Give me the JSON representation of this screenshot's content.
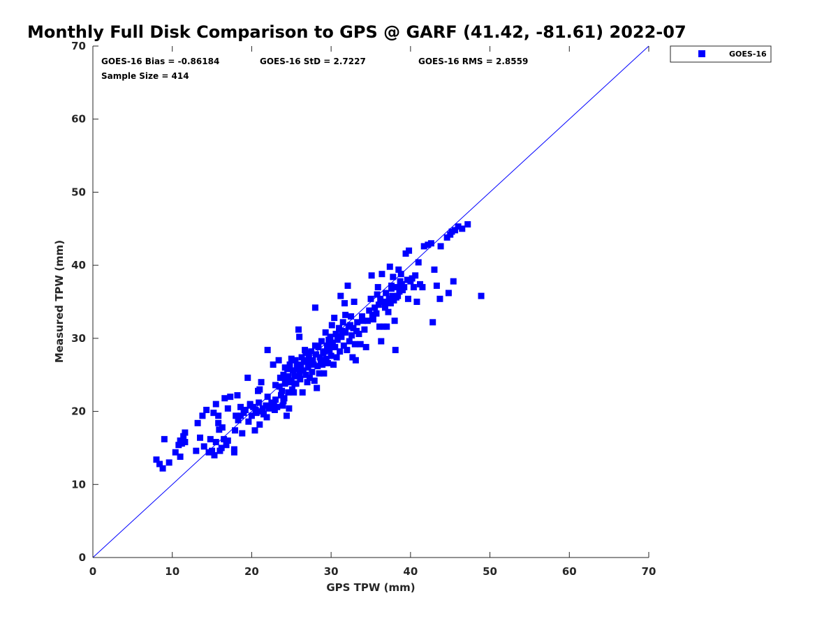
{
  "chart_data": {
    "type": "scatter",
    "title": "Monthly Full Disk Comparison to GPS @ GARF (41.42, -81.61) 2022-07",
    "xlabel": "GPS TPW (mm)",
    "ylabel": "Measured TPW (mm)",
    "xlim": [
      0,
      70
    ],
    "ylim": [
      0,
      70
    ],
    "xticks": [
      "0",
      "10",
      "20",
      "30",
      "40",
      "50",
      "60",
      "70"
    ],
    "yticks": [
      "0",
      "10",
      "20",
      "30",
      "40",
      "50",
      "60",
      "70"
    ],
    "grid": false,
    "legend_position": "outside-top-right",
    "reference_line": {
      "type": "1:1",
      "color": "#0000ff"
    },
    "stats": {
      "bias": "GOES-16 Bias = -0.86184",
      "std": "GOES-16 StD = 2.7227",
      "rms": "GOES-16 RMS = 2.8559",
      "sample_size": "Sample Size = 414"
    },
    "series": [
      {
        "name": "GOES-16",
        "color": "#0000ff",
        "marker": "square",
        "points": [
          [
            8.0,
            13.4
          ],
          [
            8.4,
            12.8
          ],
          [
            8.8,
            12.2
          ],
          [
            9.0,
            16.2
          ],
          [
            9.6,
            13.0
          ],
          [
            10.4,
            14.4
          ],
          [
            10.8,
            15.4
          ],
          [
            11.0,
            13.8
          ],
          [
            11.0,
            16.0
          ],
          [
            11.2,
            15.6
          ],
          [
            11.4,
            16.6
          ],
          [
            11.6,
            15.8
          ],
          [
            11.6,
            17.1
          ],
          [
            13.0,
            14.6
          ],
          [
            13.2,
            18.4
          ],
          [
            13.5,
            16.4
          ],
          [
            13.8,
            19.4
          ],
          [
            14.0,
            15.2
          ],
          [
            14.3,
            20.2
          ],
          [
            14.6,
            14.4
          ],
          [
            14.8,
            16.2
          ],
          [
            15.0,
            14.6
          ],
          [
            15.2,
            19.8
          ],
          [
            15.3,
            14.0
          ],
          [
            15.5,
            21.0
          ],
          [
            15.5,
            15.8
          ],
          [
            15.8,
            18.4
          ],
          [
            15.8,
            19.4
          ],
          [
            15.9,
            17.5
          ],
          [
            16.0,
            14.6
          ],
          [
            16.2,
            15.0
          ],
          [
            16.3,
            17.8
          ],
          [
            16.5,
            16.2
          ],
          [
            16.6,
            21.8
          ],
          [
            16.8,
            15.4
          ],
          [
            17.0,
            16.0
          ],
          [
            17.0,
            20.4
          ],
          [
            17.3,
            22.0
          ],
          [
            17.8,
            14.4
          ],
          [
            17.8,
            14.8
          ],
          [
            17.9,
            17.4
          ],
          [
            18.0,
            19.4
          ],
          [
            18.2,
            22.2
          ],
          [
            18.3,
            18.8
          ],
          [
            18.6,
            19.4
          ],
          [
            18.6,
            20.6
          ],
          [
            18.8,
            17.0
          ],
          [
            19.0,
            19.8
          ],
          [
            19.2,
            20.2
          ],
          [
            19.5,
            24.6
          ],
          [
            19.6,
            18.6
          ],
          [
            19.8,
            21.0
          ],
          [
            20.0,
            19.4
          ],
          [
            20.2,
            20.6
          ],
          [
            20.4,
            17.4
          ],
          [
            20.6,
            19.8
          ],
          [
            20.8,
            22.8
          ],
          [
            20.9,
            21.2
          ],
          [
            21.0,
            18.2
          ],
          [
            21.2,
            20.0
          ],
          [
            21.2,
            24.0
          ],
          [
            21.4,
            20.4
          ],
          [
            21.5,
            19.6
          ],
          [
            21.8,
            20.8
          ],
          [
            21.9,
            19.2
          ],
          [
            22.0,
            28.4
          ],
          [
            22.2,
            20.4
          ],
          [
            22.5,
            20.6
          ],
          [
            22.7,
            26.4
          ],
          [
            22.8,
            21.0
          ],
          [
            22.9,
            20.2
          ],
          [
            23.0,
            21.6
          ],
          [
            23.2,
            20.6
          ],
          [
            23.4,
            27.0
          ],
          [
            23.5,
            23.4
          ],
          [
            23.6,
            24.6
          ],
          [
            23.7,
            22.2
          ],
          [
            23.9,
            20.8
          ],
          [
            24.0,
            25.0
          ],
          [
            24.1,
            21.8
          ],
          [
            24.2,
            23.8
          ],
          [
            24.3,
            24.2
          ],
          [
            24.4,
            19.4
          ],
          [
            24.5,
            25.8
          ],
          [
            24.6,
            22.6
          ],
          [
            24.7,
            20.4
          ],
          [
            24.8,
            26.4
          ],
          [
            24.9,
            24.0
          ],
          [
            25.0,
            27.2
          ],
          [
            25.1,
            23.0
          ],
          [
            25.2,
            25.6
          ],
          [
            25.3,
            22.6
          ],
          [
            25.4,
            24.8
          ],
          [
            25.5,
            27.0
          ],
          [
            25.6,
            23.8
          ],
          [
            25.8,
            25.8
          ],
          [
            25.9,
            31.2
          ],
          [
            26.0,
            30.2
          ],
          [
            26.1,
            24.4
          ],
          [
            26.2,
            26.4
          ],
          [
            26.4,
            22.6
          ],
          [
            26.5,
            25.6
          ],
          [
            26.6,
            27.0
          ],
          [
            26.7,
            28.4
          ],
          [
            26.8,
            25.0
          ],
          [
            26.9,
            26.8
          ],
          [
            27.0,
            24.0
          ],
          [
            27.2,
            27.6
          ],
          [
            27.3,
            24.6
          ],
          [
            27.5,
            28.2
          ],
          [
            27.6,
            25.4
          ],
          [
            27.8,
            26.4
          ],
          [
            27.9,
            24.2
          ],
          [
            28.0,
            34.2
          ],
          [
            28.1,
            27.8
          ],
          [
            28.2,
            23.2
          ],
          [
            28.3,
            26.2
          ],
          [
            28.4,
            28.8
          ],
          [
            28.5,
            25.2
          ],
          [
            28.6,
            27.4
          ],
          [
            28.8,
            29.6
          ],
          [
            28.9,
            26.4
          ],
          [
            29.0,
            28.0
          ],
          [
            29.1,
            25.2
          ],
          [
            29.3,
            30.8
          ],
          [
            29.4,
            27.2
          ],
          [
            29.5,
            29.0
          ],
          [
            29.6,
            26.6
          ],
          [
            29.8,
            28.4
          ],
          [
            29.9,
            30.2
          ],
          [
            30.0,
            27.6
          ],
          [
            30.1,
            31.8
          ],
          [
            30.2,
            29.4
          ],
          [
            30.3,
            26.4
          ],
          [
            30.4,
            32.8
          ],
          [
            30.5,
            28.8
          ],
          [
            30.6,
            30.6
          ],
          [
            30.7,
            27.4
          ],
          [
            30.8,
            29.8
          ],
          [
            31.0,
            31.4
          ],
          [
            31.1,
            28.2
          ],
          [
            31.2,
            35.8
          ],
          [
            31.3,
            30.2
          ],
          [
            31.5,
            32.2
          ],
          [
            31.6,
            29.0
          ],
          [
            31.7,
            34.8
          ],
          [
            31.8,
            30.8
          ],
          [
            32.0,
            28.4
          ],
          [
            32.1,
            37.2
          ],
          [
            32.2,
            31.6
          ],
          [
            32.3,
            29.6
          ],
          [
            32.5,
            33.0
          ],
          [
            32.6,
            30.4
          ],
          [
            32.7,
            27.4
          ],
          [
            32.8,
            31.4
          ],
          [
            32.9,
            35.0
          ],
          [
            33.0,
            29.2
          ],
          [
            33.1,
            27.0
          ],
          [
            33.3,
            32.2
          ],
          [
            33.5,
            30.6
          ],
          [
            33.7,
            29.2
          ],
          [
            34.0,
            32.4
          ],
          [
            34.2,
            31.2
          ],
          [
            34.4,
            28.8
          ],
          [
            34.6,
            32.4
          ],
          [
            34.8,
            33.8
          ],
          [
            35.0,
            35.4
          ],
          [
            35.1,
            38.6
          ],
          [
            35.3,
            32.6
          ],
          [
            35.5,
            34.2
          ],
          [
            35.7,
            33.4
          ],
          [
            35.8,
            36.0
          ],
          [
            35.9,
            37.0
          ],
          [
            36.0,
            34.6
          ],
          [
            36.1,
            31.6
          ],
          [
            36.3,
            29.6
          ],
          [
            36.4,
            38.8
          ],
          [
            36.5,
            35.0
          ],
          [
            36.6,
            31.6
          ],
          [
            36.8,
            34.2
          ],
          [
            37.0,
            31.6
          ],
          [
            37.1,
            35.0
          ],
          [
            37.2,
            33.6
          ],
          [
            37.3,
            35.4
          ],
          [
            37.4,
            39.8
          ],
          [
            37.5,
            34.8
          ],
          [
            37.6,
            36.8
          ],
          [
            37.7,
            35.8
          ],
          [
            37.8,
            38.4
          ],
          [
            37.9,
            35.2
          ],
          [
            38.0,
            32.4
          ],
          [
            38.1,
            28.4
          ],
          [
            38.2,
            35.6
          ],
          [
            38.3,
            37.0
          ],
          [
            38.4,
            35.8
          ],
          [
            38.5,
            39.4
          ],
          [
            38.6,
            36.4
          ],
          [
            38.7,
            37.8
          ],
          [
            38.8,
            38.8
          ],
          [
            39.0,
            36.6
          ],
          [
            39.2,
            37.0
          ],
          [
            39.4,
            41.6
          ],
          [
            39.6,
            38.0
          ],
          [
            39.7,
            35.4
          ],
          [
            39.8,
            42.0
          ],
          [
            40.0,
            37.8
          ],
          [
            40.2,
            38.2
          ],
          [
            40.4,
            37.0
          ],
          [
            40.6,
            38.6
          ],
          [
            40.8,
            35.0
          ],
          [
            41.0,
            40.4
          ],
          [
            41.2,
            37.4
          ],
          [
            41.5,
            37.0
          ],
          [
            41.7,
            42.6
          ],
          [
            42.2,
            42.8
          ],
          [
            42.6,
            43.0
          ],
          [
            42.8,
            32.2
          ],
          [
            43.0,
            39.4
          ],
          [
            43.3,
            37.2
          ],
          [
            43.8,
            42.6
          ],
          [
            43.7,
            35.4
          ],
          [
            44.6,
            43.8
          ],
          [
            44.8,
            36.2
          ],
          [
            45.0,
            44.2
          ],
          [
            45.2,
            44.6
          ],
          [
            45.4,
            37.8
          ],
          [
            45.6,
            44.8
          ],
          [
            46.0,
            45.3
          ],
          [
            46.5,
            45.0
          ],
          [
            47.2,
            45.6
          ],
          [
            48.9,
            35.8
          ],
          [
            21.0,
            23.0
          ],
          [
            22.5,
            21.2
          ],
          [
            23.8,
            22.8
          ],
          [
            24.6,
            24.8
          ],
          [
            25.7,
            26.2
          ],
          [
            26.3,
            27.4
          ],
          [
            27.1,
            26.0
          ],
          [
            27.7,
            27.0
          ],
          [
            28.7,
            27.0
          ],
          [
            29.2,
            28.2
          ],
          [
            29.7,
            29.8
          ],
          [
            30.9,
            30.2
          ],
          [
            31.4,
            31.0
          ],
          [
            32.4,
            31.8
          ],
          [
            33.2,
            31.0
          ],
          [
            33.9,
            33.0
          ],
          [
            35.2,
            33.2
          ],
          [
            36.2,
            35.4
          ],
          [
            36.9,
            36.2
          ],
          [
            37.6,
            37.2
          ],
          [
            38.9,
            37.4
          ],
          [
            19.8,
            20.8
          ],
          [
            20.5,
            20.2
          ],
          [
            22.0,
            22.0
          ],
          [
            23.0,
            23.6
          ],
          [
            24.2,
            26.0
          ],
          [
            25.4,
            23.8
          ],
          [
            26.8,
            28.0
          ],
          [
            28.0,
            29.0
          ],
          [
            30.0,
            29.0
          ],
          [
            31.8,
            33.2
          ],
          [
            24.0,
            21.4
          ],
          [
            25.0,
            24.2
          ],
          [
            26.0,
            25.0
          ],
          [
            27.4,
            26.8
          ]
        ]
      }
    ]
  }
}
